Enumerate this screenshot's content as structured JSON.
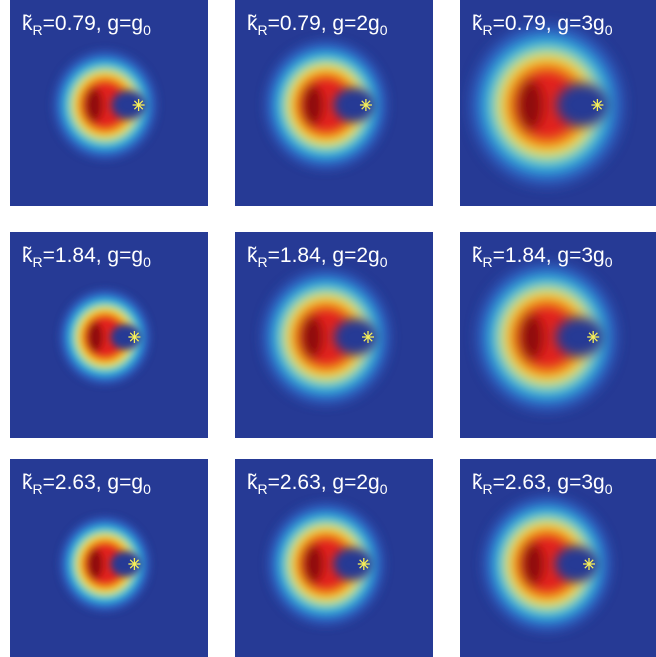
{
  "panels": [
    {
      "label": [
        "k̃",
        "R",
        "=0.79, g=g",
        "0"
      ]
    },
    {
      "label": [
        "k̃",
        "R",
        "=0.79, g=2g",
        "0"
      ]
    },
    {
      "label": [
        "k̃",
        "R",
        "=0.79, g=3g",
        "0"
      ]
    },
    {
      "label": [
        "k̃",
        "R",
        "=1.84, g=g",
        "0"
      ]
    },
    {
      "label": [
        "k̃",
        "R",
        "=1.84, g=2g",
        "0"
      ]
    },
    {
      "label": [
        "k̃",
        "R",
        "=1.84, g=3g",
        "0"
      ]
    },
    {
      "label": [
        "k̃",
        "R",
        "=2.63, g=g",
        "0"
      ]
    },
    {
      "label": [
        "k̃",
        "R",
        "=2.63, g=2g",
        "0"
      ]
    },
    {
      "label": [
        "k̃",
        "R",
        "=2.63, g=3g",
        "0"
      ]
    }
  ]
}
